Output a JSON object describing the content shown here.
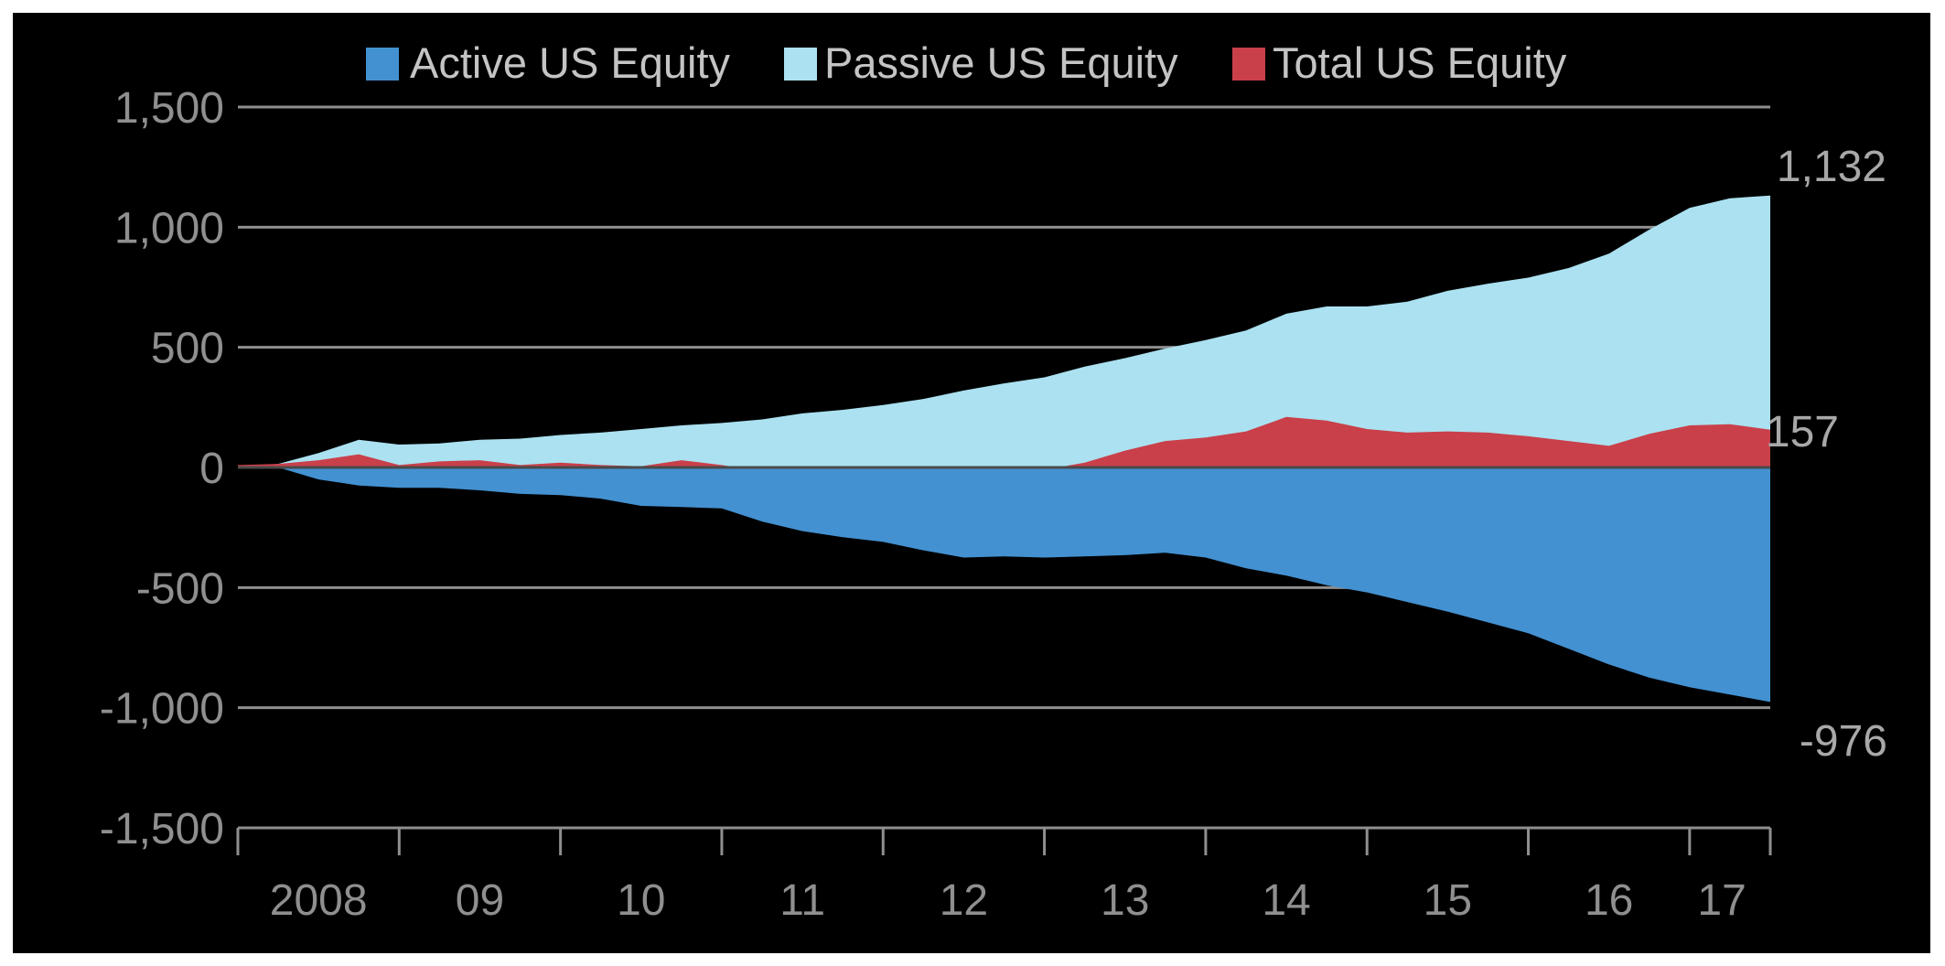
{
  "colors": {
    "background": "#000000",
    "active": "#4391d1",
    "passive": "#abe1f0",
    "total": "#c9404a",
    "grid": "#8f8f8f",
    "zero_line": "#4a4a4a",
    "text": "#8f8f8f"
  },
  "chart_data": {
    "type": "area",
    "title": "",
    "xlabel": "",
    "ylabel": "",
    "ylim": [
      -1500,
      1500
    ],
    "y_ticks": [
      "1,500",
      "1,000",
      "500",
      "0",
      "-500",
      "-1,000",
      "-1,500"
    ],
    "y_tick_values": [
      1500,
      1000,
      500,
      0,
      -500,
      -1000,
      -1500
    ],
    "x_ticks": [
      "2008",
      "09",
      "10",
      "11",
      "12",
      "13",
      "14",
      "15",
      "16",
      "17"
    ],
    "xlim": [
      2008.0,
      2017.5
    ],
    "grid": true,
    "legend": {
      "placement": "top",
      "entries": [
        "Active US Equity",
        "Passive US Equity",
        "Total US Equity"
      ]
    },
    "end_labels": {
      "passive": "1,132",
      "total": "157",
      "active": "-976"
    },
    "x": [
      2008.0,
      2008.25,
      2008.5,
      2008.75,
      2009.0,
      2009.25,
      2009.5,
      2009.75,
      2010.0,
      2010.25,
      2010.5,
      2010.75,
      2011.0,
      2011.25,
      2011.5,
      2011.75,
      2012.0,
      2012.25,
      2012.5,
      2012.75,
      2013.0,
      2013.25,
      2013.5,
      2013.75,
      2014.0,
      2014.25,
      2014.5,
      2014.75,
      2015.0,
      2015.25,
      2015.5,
      2015.75,
      2016.0,
      2016.25,
      2016.5,
      2016.75,
      2017.0,
      2017.25,
      2017.5
    ],
    "series": [
      {
        "name": "Passive US Equity",
        "key": "passive",
        "values": [
          0,
          15,
          60,
          115,
          95,
          100,
          115,
          120,
          135,
          145,
          160,
          175,
          185,
          200,
          225,
          240,
          260,
          285,
          320,
          350,
          375,
          420,
          455,
          495,
          530,
          570,
          640,
          670,
          670,
          690,
          735,
          765,
          790,
          830,
          890,
          990,
          1080,
          1120,
          1132
        ]
      },
      {
        "name": "Total US Equity",
        "key": "total",
        "values": [
          10,
          15,
          30,
          55,
          10,
          25,
          30,
          10,
          20,
          10,
          5,
          30,
          10,
          -15,
          -40,
          -45,
          -55,
          -70,
          -100,
          -55,
          -10,
          20,
          70,
          110,
          125,
          150,
          210,
          195,
          160,
          145,
          150,
          145,
          130,
          110,
          90,
          140,
          175,
          180,
          157
        ]
      },
      {
        "name": "Active US Equity",
        "key": "active",
        "values": [
          0,
          0,
          -50,
          -75,
          -85,
          -85,
          -95,
          -110,
          -115,
          -130,
          -160,
          -165,
          -170,
          -225,
          -265,
          -290,
          -310,
          -345,
          -375,
          -370,
          -375,
          -370,
          -365,
          -355,
          -375,
          -420,
          -450,
          -490,
          -520,
          -560,
          -600,
          -645,
          -690,
          -755,
          -820,
          -875,
          -915,
          -945,
          -976
        ]
      }
    ]
  }
}
